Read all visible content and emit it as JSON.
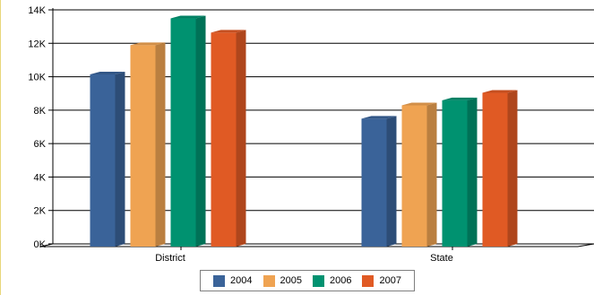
{
  "chart_data": {
    "type": "bar",
    "style": "3d-clustered-column",
    "categories": [
      "District",
      "State"
    ],
    "series": [
      {
        "name": "2004",
        "color": "#3a6399",
        "values": [
          10300,
          7650
        ]
      },
      {
        "name": "2005",
        "color": "#efa352",
        "values": [
          12050,
          8450
        ]
      },
      {
        "name": "2006",
        "color": "#009270",
        "values": [
          13650,
          8750
        ]
      },
      {
        "name": "2007",
        "color": "#e05a24",
        "values": [
          12800,
          9200
        ]
      }
    ],
    "y_ticks": [
      "0K",
      "2K",
      "4K",
      "6K",
      "8K",
      "10K",
      "12K",
      "14K"
    ],
    "ylim": [
      0,
      14000
    ],
    "grid": true,
    "legend_position": "bottom"
  }
}
